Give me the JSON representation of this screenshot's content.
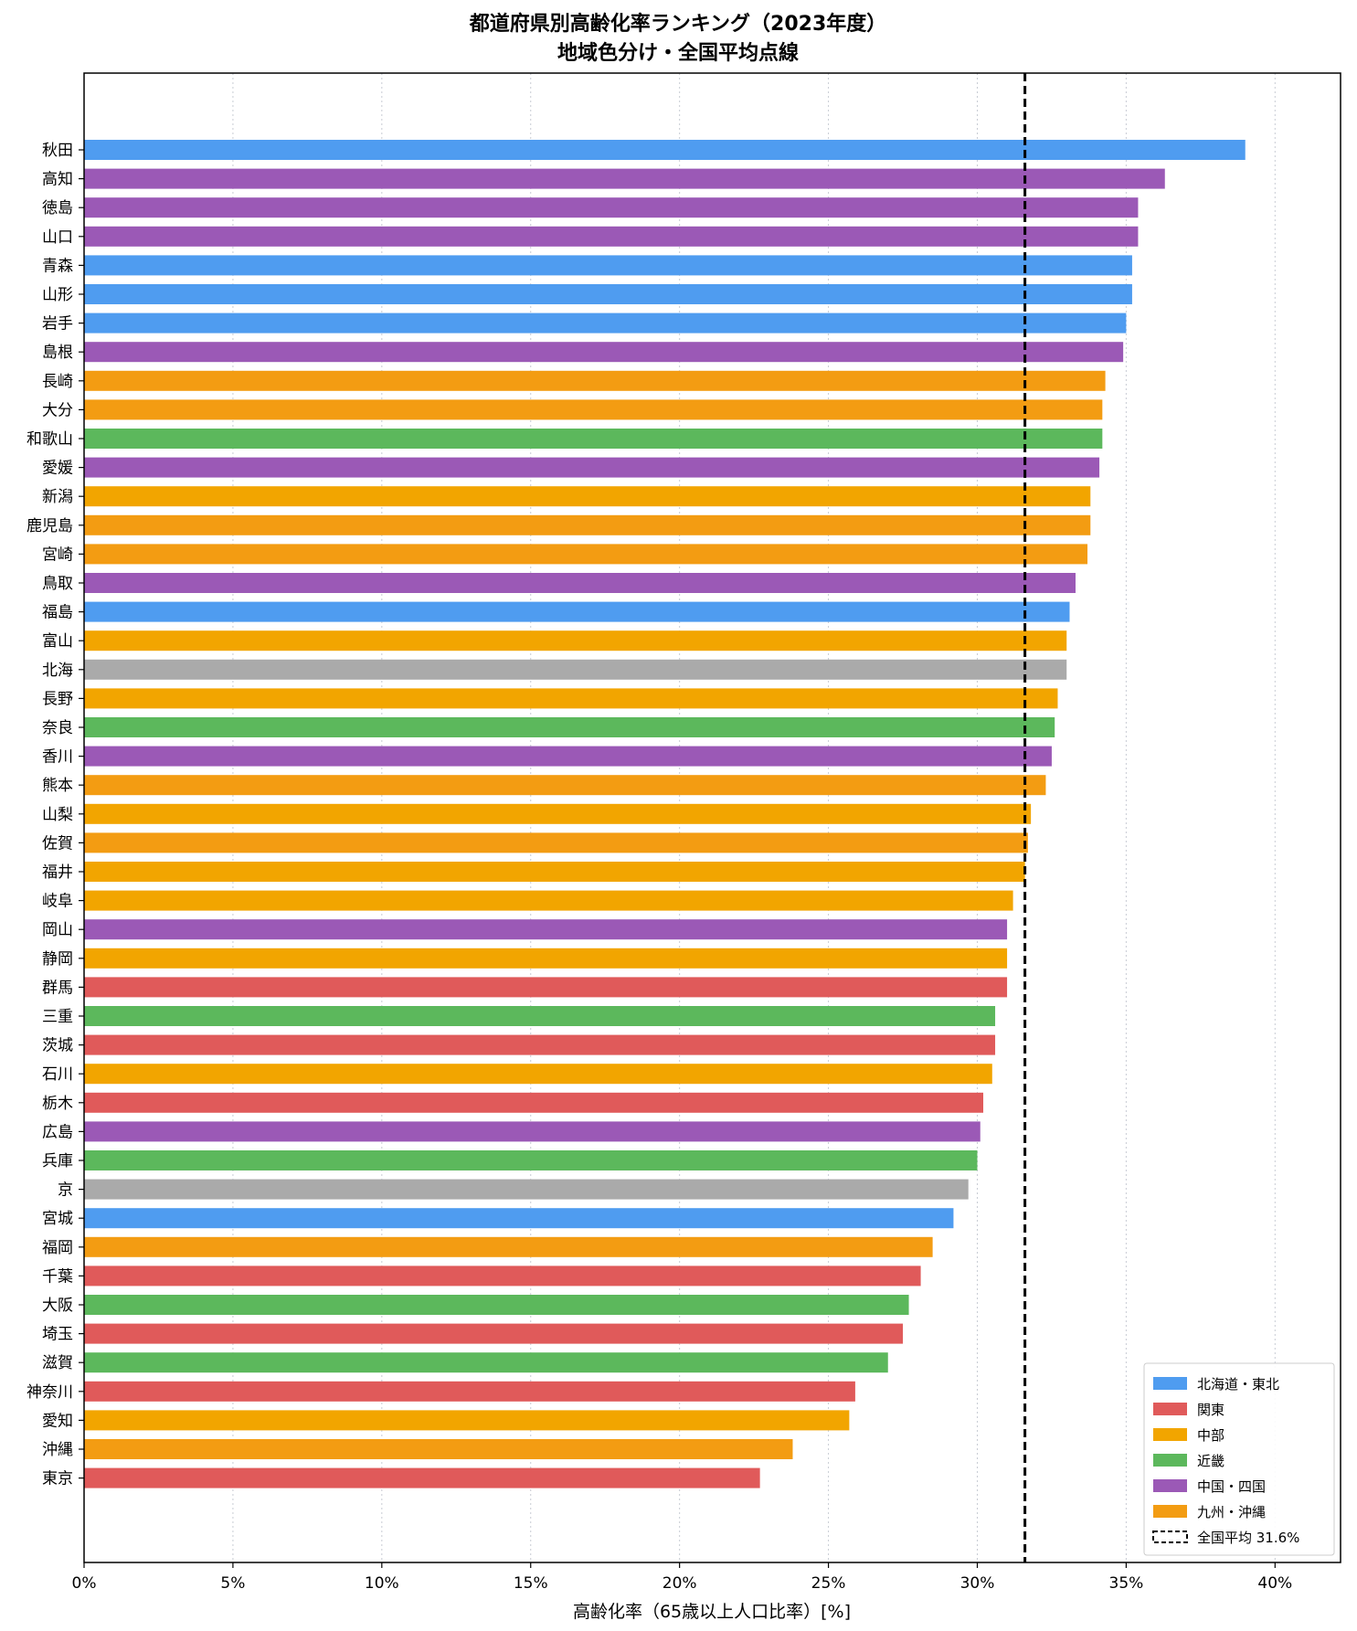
{
  "chart_data": {
    "type": "bar",
    "orientation": "horizontal",
    "title": "都道府県別高齢化率ランキング（2023年度）",
    "subtitle": "地域色分け・全国平均点線",
    "xlabel": "高齢化率（65歳以上人口比率）[%]",
    "ylabel": "",
    "xlim": [
      0,
      42.2
    ],
    "xticks": [
      0,
      5,
      10,
      15,
      20,
      25,
      30,
      35,
      40
    ],
    "xtick_labels": [
      "0%",
      "5%",
      "10%",
      "15%",
      "20%",
      "25%",
      "30%",
      "35%",
      "40%"
    ],
    "grid": "x, dotted",
    "legend_position": "bottom-right",
    "average": {
      "value": 31.6,
      "label": "全国平均 31.6%"
    },
    "regions": [
      {
        "key": "tohoku",
        "name": "北海道・東北",
        "color": "#4f9cf0"
      },
      {
        "key": "kanto",
        "name": "関東",
        "color": "#e05a5a"
      },
      {
        "key": "chubu",
        "name": "中部",
        "color": "#f2a500"
      },
      {
        "key": "kinki",
        "name": "近畿",
        "color": "#5cb85c"
      },
      {
        "key": "chugoku",
        "name": "中国・四国",
        "color": "#9b59b6"
      },
      {
        "key": "kyushu",
        "name": "九州・沖縄",
        "color": "#f39c12"
      }
    ],
    "other_color": "#aaaaaa",
    "categories": [
      "秋田",
      "高知",
      "徳島",
      "山口",
      "青森",
      "山形",
      "岩手",
      "島根",
      "長崎",
      "大分",
      "和歌山",
      "愛媛",
      "新潟",
      "鹿児島",
      "宮崎",
      "鳥取",
      "福島",
      "富山",
      "北海",
      "長野",
      "奈良",
      "香川",
      "熊本",
      "山梨",
      "佐賀",
      "福井",
      "岐阜",
      "岡山",
      "静岡",
      "群馬",
      "三重",
      "茨城",
      "石川",
      "栃木",
      "広島",
      "兵庫",
      "京",
      "宮城",
      "福岡",
      "千葉",
      "大阪",
      "埼玉",
      "滋賀",
      "神奈川",
      "愛知",
      "沖縄",
      "東京"
    ],
    "values": [
      39.0,
      36.3,
      35.4,
      35.4,
      35.2,
      35.2,
      35.0,
      34.9,
      34.3,
      34.2,
      34.2,
      34.1,
      33.8,
      33.8,
      33.7,
      33.3,
      33.1,
      33.0,
      33.0,
      32.7,
      32.6,
      32.5,
      32.3,
      31.8,
      31.7,
      31.6,
      31.2,
      31.0,
      31.0,
      31.0,
      30.6,
      30.6,
      30.5,
      30.2,
      30.1,
      30.0,
      29.7,
      29.2,
      28.5,
      28.1,
      27.7,
      27.5,
      27.0,
      25.9,
      25.7,
      23.8,
      22.7
    ],
    "bar_regions": [
      "tohoku",
      "chugoku",
      "chugoku",
      "chugoku",
      "tohoku",
      "tohoku",
      "tohoku",
      "chugoku",
      "kyushu",
      "kyushu",
      "kinki",
      "chugoku",
      "chubu",
      "kyushu",
      "kyushu",
      "chugoku",
      "tohoku",
      "chubu",
      "other",
      "chubu",
      "kinki",
      "chugoku",
      "kyushu",
      "chubu",
      "kyushu",
      "chubu",
      "chubu",
      "chugoku",
      "chubu",
      "kanto",
      "kinki",
      "kanto",
      "chubu",
      "kanto",
      "chugoku",
      "kinki",
      "other",
      "tohoku",
      "kyushu",
      "kanto",
      "kinki",
      "kanto",
      "kinki",
      "kanto",
      "chubu",
      "kyushu",
      "kanto"
    ]
  }
}
